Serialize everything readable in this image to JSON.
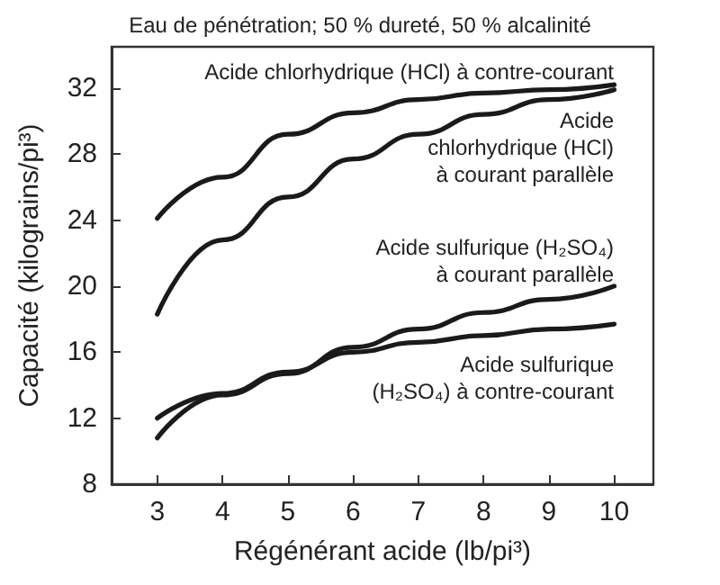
{
  "chart_data": {
    "type": "line",
    "title": "Eau de pénétration; 50 % dureté, 50 % alcalinité",
    "xlabel": "Régénérant acide (lb/pi³)",
    "ylabel": "Capacité (kilograins/pi³)",
    "x": [
      3,
      4,
      5,
      6,
      7,
      8,
      9,
      10
    ],
    "series": [
      {
        "color": "#1a1a1a",
        "values": [
          24.1,
          26.6,
          29.2,
          30.5,
          31.3,
          31.7,
          31.9,
          32.2
        ]
      },
      {
        "color": "#1a1a1a",
        "values": [
          18.3,
          22.8,
          25.4,
          27.7,
          29.2,
          30.4,
          31.3,
          31.9
        ]
      },
      {
        "color": "#1a1a1a",
        "values": [
          10.8,
          13.4,
          14.7,
          16.3,
          17.4,
          18.4,
          19.2,
          20.0
        ]
      },
      {
        "color": "#1a1a1a",
        "values": [
          12.0,
          13.5,
          14.8,
          16.0,
          16.6,
          17.0,
          17.4,
          17.7
        ]
      }
    ],
    "xlim": [
      2.3,
      10.6
    ],
    "xticks": [
      3,
      4,
      5,
      6,
      7,
      8,
      9,
      10
    ],
    "ylim": [
      8,
      34.5
    ],
    "yticks": [
      8,
      12,
      16,
      20,
      24,
      28,
      32
    ],
    "grid": false,
    "marker": "none",
    "line_style": "solid",
    "annotations": [
      "Acide chlorhydrique (HCl) à contre-courant",
      "Acide\nchlorhydrique (HCl)\nà courant parallèle",
      "Acide sulfurique (H₂SO₄)\nà courant parallèle",
      "Acide sulfurique\n(H₂SO₄) à contre-courant"
    ]
  }
}
